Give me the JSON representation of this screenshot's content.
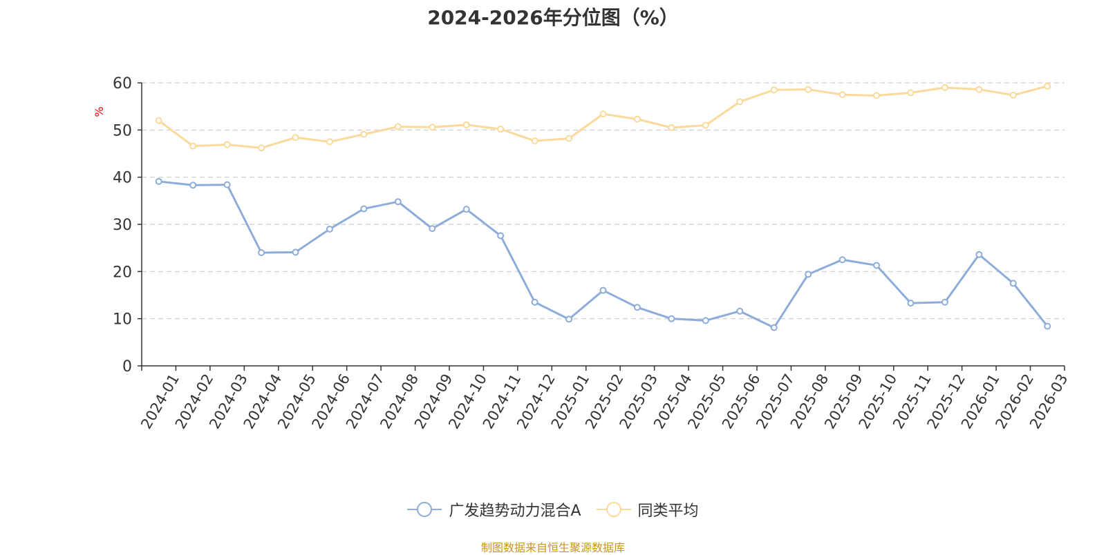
{
  "chart_data": {
    "type": "line",
    "title": "2024-2026年分位图（%）",
    "ylabel": "%",
    "xlabel": "",
    "ylim": [
      0,
      60
    ],
    "yticks": [
      0,
      10,
      20,
      30,
      40,
      50,
      60
    ],
    "grid": true,
    "legend_position": "bottom-center",
    "categories": [
      "2024-01",
      "2024-02",
      "2024-03",
      "2024-04",
      "2024-05",
      "2024-06",
      "2024-07",
      "2024-08",
      "2024-09",
      "2024-10",
      "2024-11",
      "2024-12",
      "2025-01",
      "2025-02",
      "2025-03",
      "2025-04",
      "2025-05",
      "2025-06",
      "2025-07",
      "2025-08",
      "2025-09",
      "2025-10",
      "2025-11",
      "2025-12",
      "2026-01",
      "2026-02",
      "2026-03"
    ],
    "series": [
      {
        "name": "广发趋势动力混合A",
        "color": "#8eacd9",
        "values": [
          39.1,
          38.3,
          38.4,
          24.0,
          24.1,
          29.0,
          33.3,
          34.8,
          29.1,
          33.2,
          27.6,
          13.5,
          9.9,
          16.0,
          12.4,
          10.0,
          9.6,
          11.6,
          8.1,
          19.4,
          22.5,
          21.3,
          13.3,
          13.5,
          23.6,
          17.5,
          8.4
        ]
      },
      {
        "name": "同类平均",
        "color": "#fbd99a",
        "values": [
          52.0,
          46.6,
          46.9,
          46.2,
          48.4,
          47.5,
          49.1,
          50.7,
          50.6,
          51.1,
          50.2,
          47.7,
          48.2,
          53.4,
          52.3,
          50.5,
          51.0,
          56.0,
          58.5,
          58.6,
          57.5,
          57.3,
          57.9,
          59.0,
          58.6,
          57.4,
          59.3
        ]
      }
    ]
  },
  "footer": {
    "source": "制图数据来自恒生聚源数据库"
  },
  "colors": {
    "axis": "#333333",
    "grid": "#cccccc",
    "ylabel": "#ff0000",
    "footer": "#c9941a"
  }
}
